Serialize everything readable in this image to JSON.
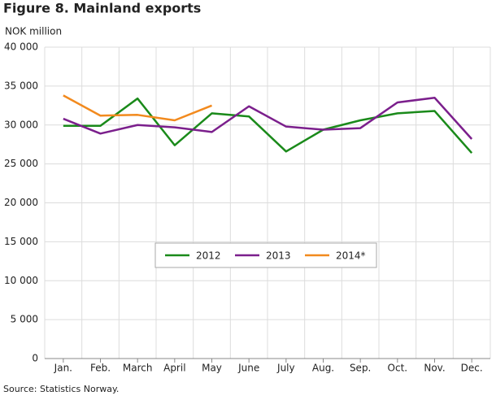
{
  "chart_data": {
    "type": "line",
    "title": "Figure 8. Mainland exports",
    "y_label": "NOK million",
    "source": "Source: Statistics Norway.",
    "categories": [
      "Jan.",
      "Feb.",
      "March",
      "April",
      "May",
      "June",
      "July",
      "Aug.",
      "Sep.",
      "Oct.",
      "Nov.",
      "Dec."
    ],
    "series": [
      {
        "name": "2012",
        "color": "#1a8a1a",
        "values": [
          29900,
          29900,
          33400,
          27400,
          31500,
          31100,
          26600,
          29400,
          30600,
          31500,
          31800,
          26400
        ]
      },
      {
        "name": "2013",
        "color": "#7b1f8c",
        "values": [
          30800,
          28900,
          30000,
          29700,
          29100,
          32400,
          29800,
          29400,
          29600,
          32900,
          33500,
          28200
        ]
      },
      {
        "name": "2014*",
        "color": "#f28a1e",
        "values": [
          33800,
          31200,
          31300,
          30600,
          32500,
          null,
          null,
          null,
          null,
          null,
          null,
          null
        ]
      }
    ],
    "ylim": [
      0,
      40000
    ],
    "yticks": [
      {
        "value": 0,
        "label": "0"
      },
      {
        "value": 5000,
        "label": "5 000"
      },
      {
        "value": 10000,
        "label": "10 000"
      },
      {
        "value": 15000,
        "label": "15 000"
      },
      {
        "value": 20000,
        "label": "20 000"
      },
      {
        "value": 25000,
        "label": "25 000"
      },
      {
        "value": 30000,
        "label": "30 000"
      },
      {
        "value": 35000,
        "label": "35 000"
      },
      {
        "value": 40000,
        "label": "40 000"
      }
    ],
    "grid": true,
    "legend": "center"
  }
}
